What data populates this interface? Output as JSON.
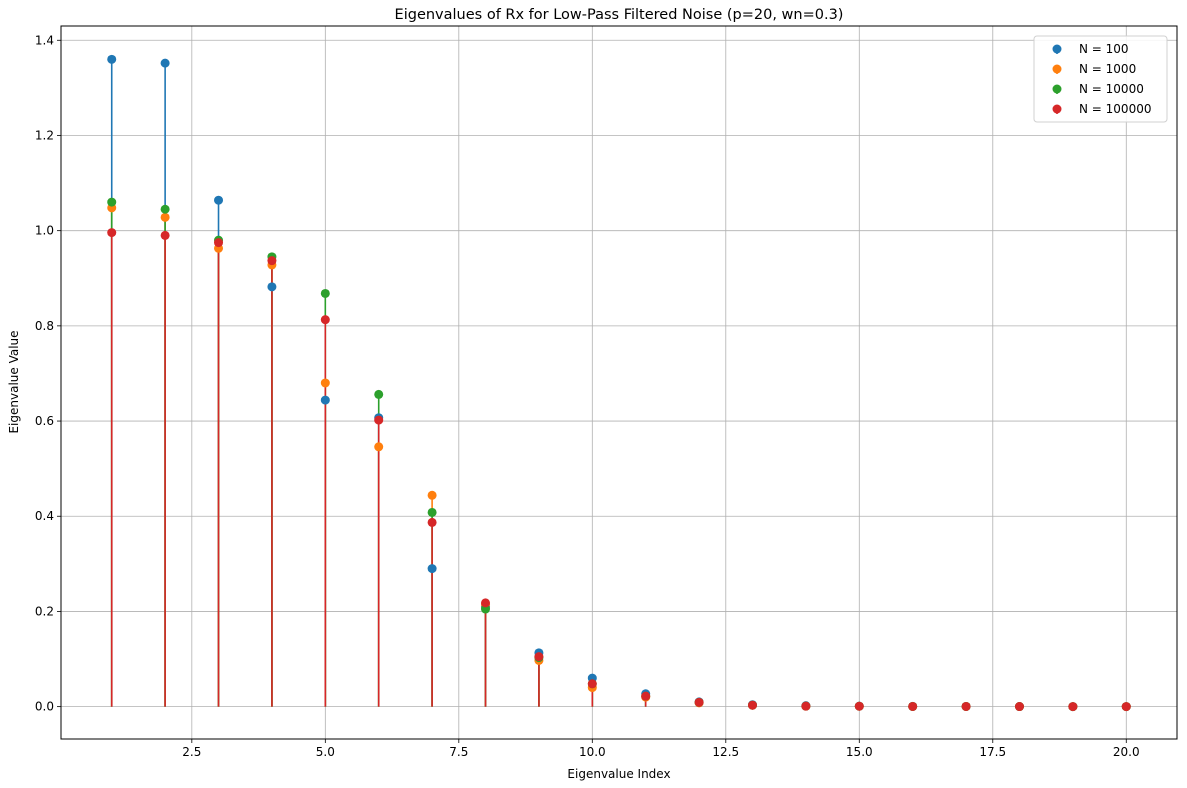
{
  "chart_data": {
    "type": "stem",
    "title": "Eigenvalues of Rx for Low-Pass Filtered Noise (p=20, wn=0.3)",
    "xlabel": "Eigenvalue Index",
    "ylabel": "Eigenvalue Value",
    "xlim": [
      0.05,
      20.95
    ],
    "ylim": [
      -0.068,
      1.43
    ],
    "xticks": [
      2.5,
      5.0,
      7.5,
      10.0,
      12.5,
      15.0,
      17.5,
      20.0
    ],
    "xtick_labels": [
      "2.5",
      "5.0",
      "7.5",
      "10.0",
      "12.5",
      "15.0",
      "17.5",
      "20.0"
    ],
    "yticks": [
      0.0,
      0.2,
      0.4,
      0.6,
      0.8,
      1.0,
      1.2,
      1.4
    ],
    "ytick_labels": [
      "0.0",
      "0.2",
      "0.4",
      "0.6",
      "0.8",
      "1.0",
      "1.2",
      "1.4"
    ],
    "grid": true,
    "legend_position": "top-right",
    "x": [
      1,
      2,
      3,
      4,
      5,
      6,
      7,
      8,
      9,
      10,
      11,
      12,
      13,
      14,
      15,
      16,
      17,
      18,
      19,
      20
    ],
    "series": [
      {
        "name": "N = 100",
        "color": "#1f77b4",
        "values": [
          1.36,
          1.352,
          1.064,
          0.882,
          0.644,
          0.607,
          0.29,
          0.21,
          0.113,
          0.06,
          0.027,
          0.01,
          0.004,
          0.002,
          0.001,
          0.0005,
          0.0003,
          0.0002,
          0.0001,
          5e-05
        ]
      },
      {
        "name": "N = 1000",
        "color": "#ff7f0e",
        "values": [
          1.048,
          1.028,
          0.963,
          0.928,
          0.68,
          0.546,
          0.444,
          0.215,
          0.097,
          0.04,
          0.02,
          0.008,
          0.003,
          0.001,
          0.0008,
          0.0004,
          0.0003,
          0.0002,
          0.0001,
          5e-05
        ]
      },
      {
        "name": "N = 10000",
        "color": "#2ca02c",
        "values": [
          1.06,
          1.045,
          0.98,
          0.945,
          0.868,
          0.656,
          0.408,
          0.205,
          0.103,
          0.048,
          0.022,
          0.009,
          0.003,
          0.001,
          0.0008,
          0.0004,
          0.0003,
          0.0002,
          0.0001,
          5e-05
        ]
      },
      {
        "name": "N = 100000",
        "color": "#d62728",
        "values": [
          0.996,
          0.99,
          0.975,
          0.937,
          0.813,
          0.602,
          0.387,
          0.218,
          0.105,
          0.048,
          0.022,
          0.009,
          0.003,
          0.001,
          0.0008,
          0.0004,
          0.0003,
          0.0002,
          0.0001,
          5e-05
        ]
      }
    ]
  }
}
